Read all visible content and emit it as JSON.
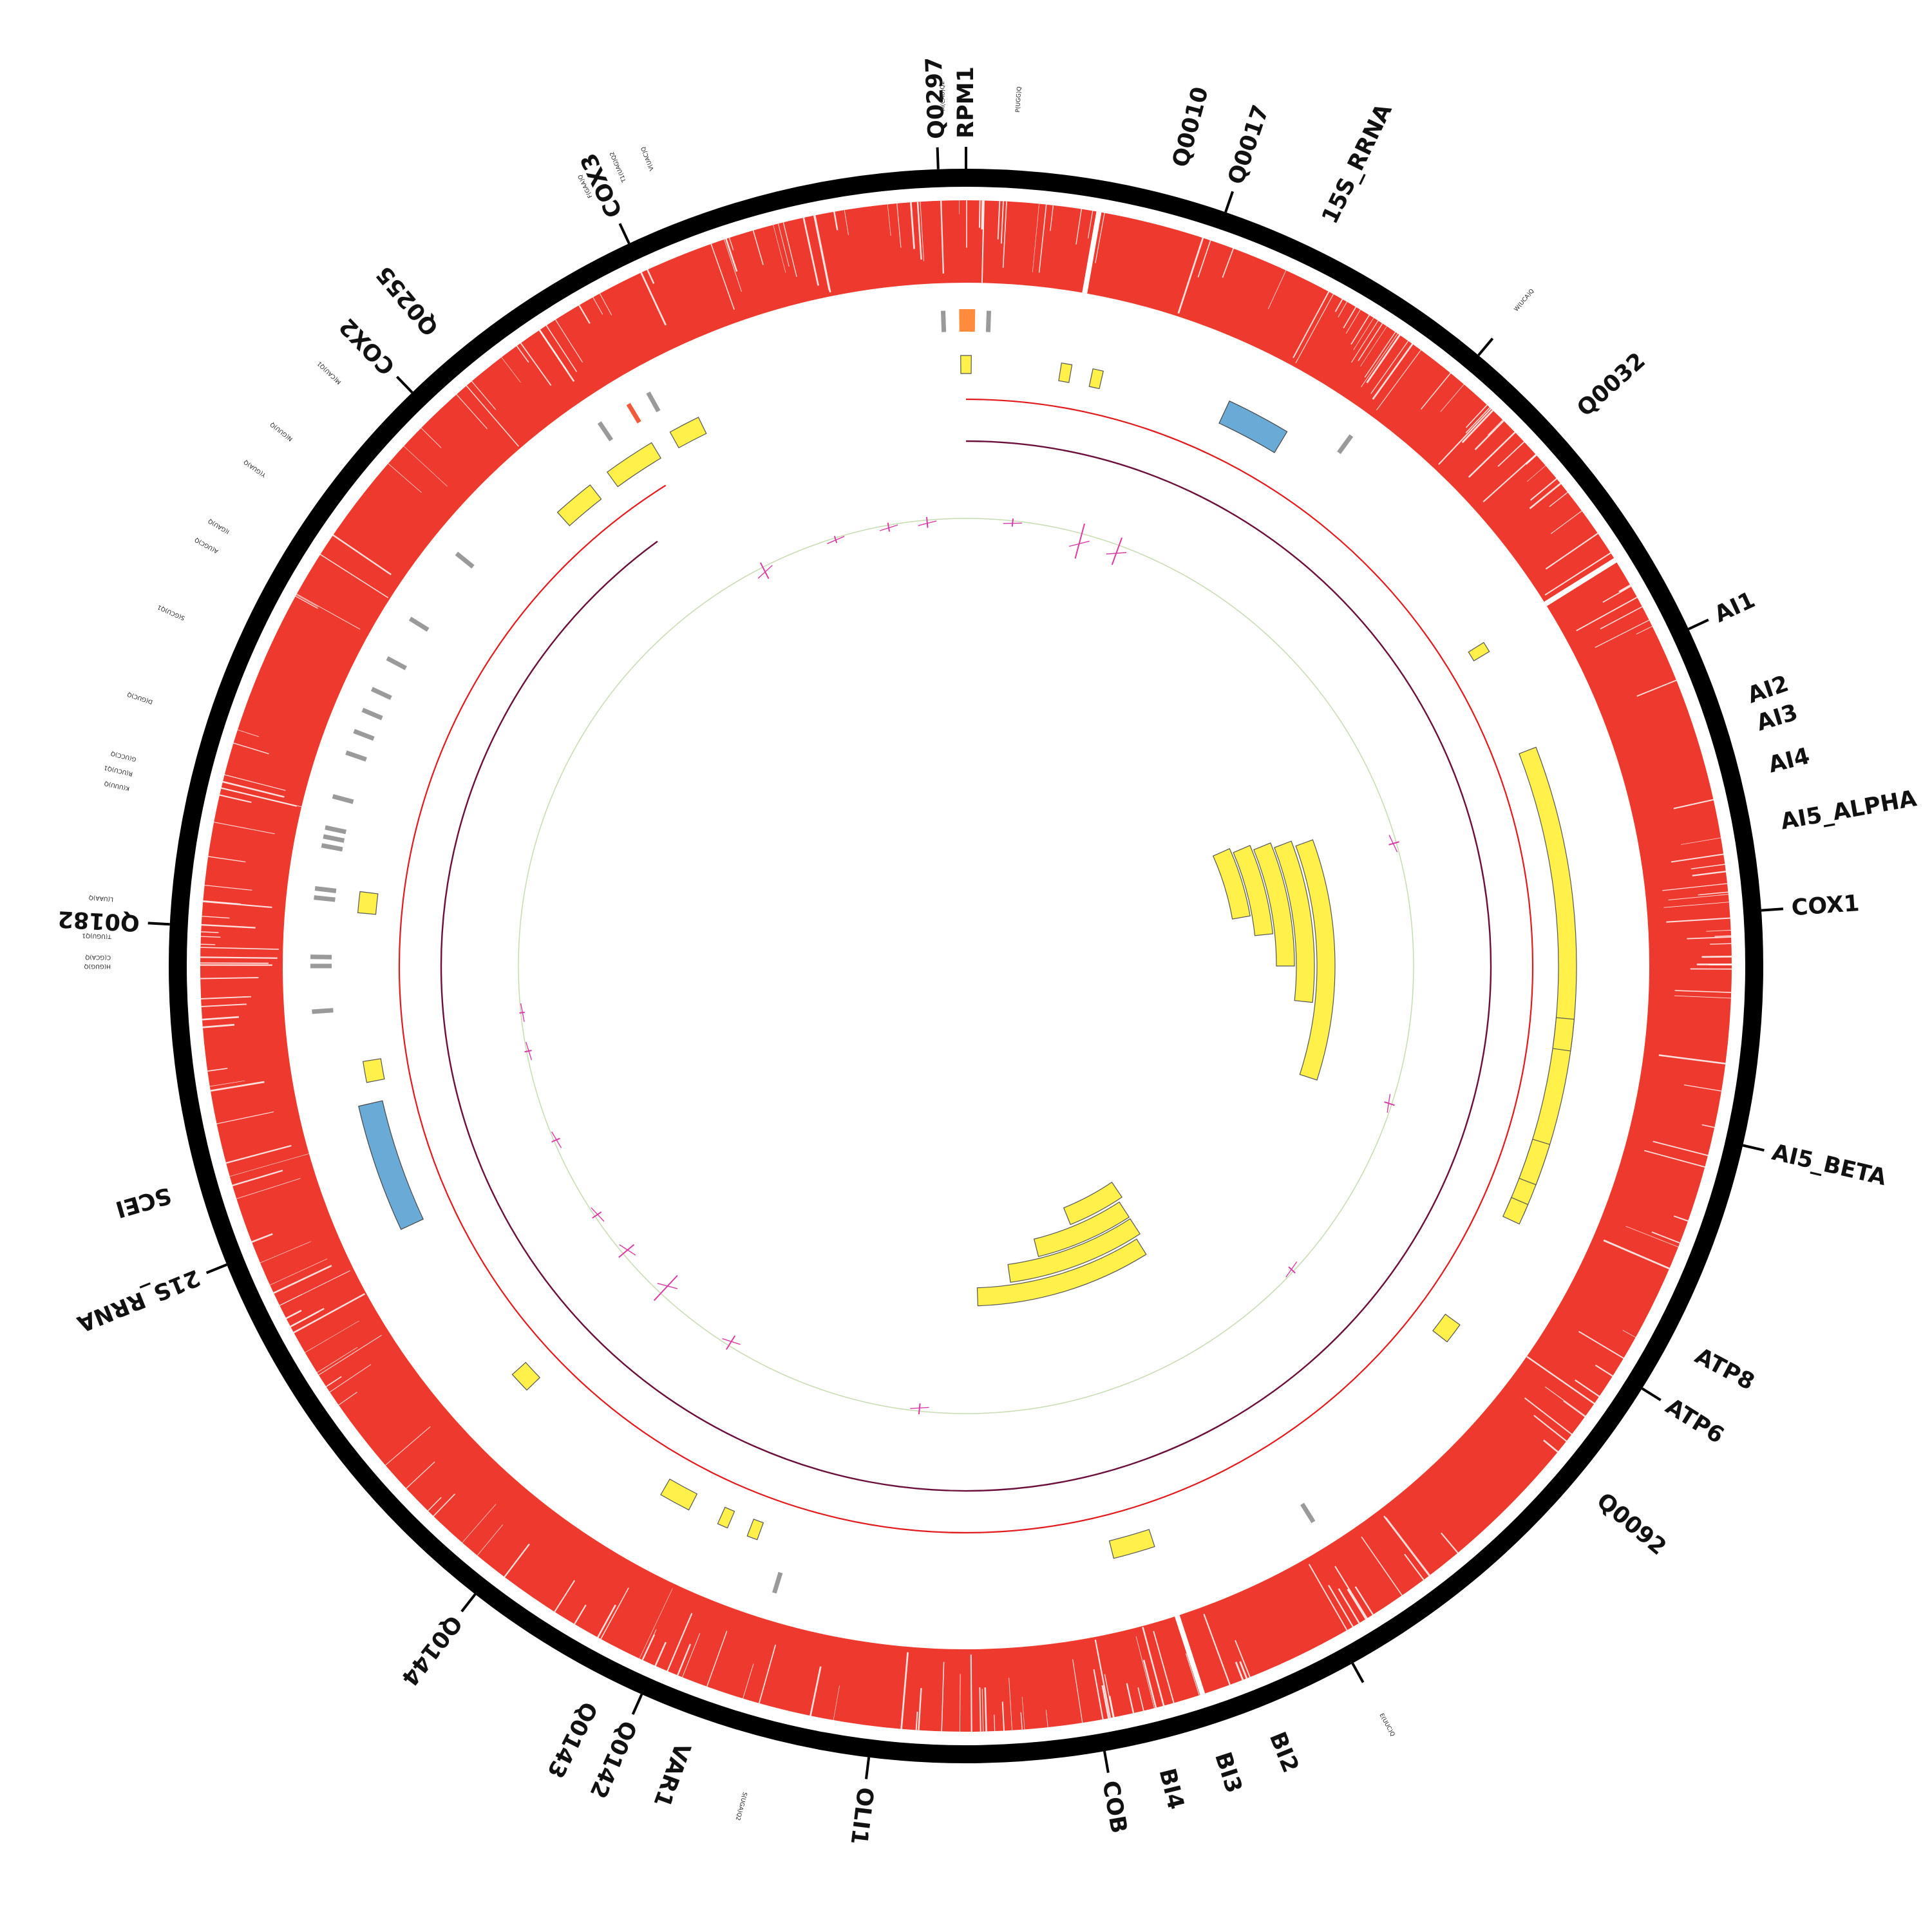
{
  "colors": {
    "outer_ring": "#000000",
    "coverage": "#ee3a2e",
    "gene_feature": "#fff04a",
    "rrna_feature": "#6aaad6",
    "trna_feature": "#9a9a9a",
    "highlight_trna": "#f25a3c",
    "origin_feature": "#ff8c3c",
    "forward_track": "#e4191c",
    "reverse_track": "#6b0f3a",
    "gc_baseline": "#c6dbb0",
    "gc_skew": "#d93ba4"
  },
  "gene_labels": [
    {
      "name": "Q0297",
      "angle": -2
    },
    {
      "name": "RPM1",
      "angle": 0
    },
    {
      "name": "Q0010",
      "angle": 15
    },
    {
      "name": "Q0017",
      "angle": 19
    },
    {
      "name": "15S_RRNA",
      "angle": 26
    },
    {
      "name": "Q0032",
      "angle": 48
    },
    {
      "name": "AI1",
      "angle": 65
    },
    {
      "name": "AI2",
      "angle": 71
    },
    {
      "name": "AI3",
      "angle": 73
    },
    {
      "name": "AI4",
      "angle": 76
    },
    {
      "name": "AI5_ALPHA",
      "angle": 80
    },
    {
      "name": "COX1",
      "angle": 86
    },
    {
      "name": "AI5_BETA",
      "angle": 103
    },
    {
      "name": "ATP8",
      "angle": 118
    },
    {
      "name": "ATP6",
      "angle": 122
    },
    {
      "name": "Q0092",
      "angle": 130
    },
    {
      "name": "BI2",
      "angle": 158
    },
    {
      "name": "BI3",
      "angle": 162
    },
    {
      "name": "BI4",
      "angle": 166
    },
    {
      "name": "COB",
      "angle": 170
    },
    {
      "name": "OLI1",
      "angle": 187
    },
    {
      "name": "VAR1",
      "angle": 200
    },
    {
      "name": "Q0142",
      "angle": 204
    },
    {
      "name": "Q0143",
      "angle": 207
    },
    {
      "name": "Q0144",
      "angle": 218
    },
    {
      "name": "21S_RRNA",
      "angle": 248
    },
    {
      "name": "SCEI",
      "angle": 254
    },
    {
      "name": "Q0182",
      "angle": 273
    },
    {
      "name": "COX2",
      "angle": 316
    },
    {
      "name": "Q0255",
      "angle": 320
    },
    {
      "name": "COX3",
      "angle": 335
    }
  ],
  "trna_labels": [
    {
      "name": "M(CAU)Q2",
      "angle": -1.5
    },
    {
      "name": "P(UGG)Q",
      "angle": 3.5
    },
    {
      "name": "W(UCA)Q",
      "angle": 40
    },
    {
      "name": "E(UUC)Q",
      "angle": 151
    },
    {
      "name": "S(UGA)Q2",
      "angle": 195
    },
    {
      "name": "T(UGU)Q1",
      "angle": 272
    },
    {
      "name": "C(GCA)Q",
      "angle": 270.6
    },
    {
      "name": "H(GUG)Q",
      "angle": 270
    },
    {
      "name": "L(UAA)Q",
      "angle": 274.5
    },
    {
      "name": "K(UUU)Q",
      "angle": 282
    },
    {
      "name": "R(UCU)Q1",
      "angle": 283
    },
    {
      "name": "G(UCC)Q",
      "angle": 284
    },
    {
      "name": "D(GUC)Q",
      "angle": 288
    },
    {
      "name": "S(GCU)Q1",
      "angle": 294
    },
    {
      "name": "A(UGC)Q",
      "angle": 299
    },
    {
      "name": "I(GAU)Q",
      "angle": 300.5
    },
    {
      "name": "Y(GUA)Q",
      "angle": 305
    },
    {
      "name": "N(GUU)Q",
      "angle": 308
    },
    {
      "name": "M(CAU)Q1",
      "angle": 313
    },
    {
      "name": "F(GAA)Q",
      "angle": 334
    },
    {
      "name": "T1(UAG)Q2",
      "angle": 336.5
    },
    {
      "name": "V(UAC)Q",
      "angle": 338.5
    }
  ],
  "tick_marks": [
    -2,
    0,
    19,
    40,
    65,
    86,
    103,
    122,
    151,
    170,
    187,
    204,
    218,
    248,
    273,
    316,
    335
  ],
  "genes_outer": [
    {
      "start": -0.5,
      "end": 0.5
    },
    {
      "start": 9,
      "end": 10
    },
    {
      "start": 12,
      "end": 13
    },
    {
      "start": 58,
      "end": 59
    },
    {
      "start": 69,
      "end": 114
    },
    {
      "start": 107,
      "end": 111
    },
    {
      "start": 113,
      "end": 115
    },
    {
      "start": 95,
      "end": 98
    },
    {
      "start": 126,
      "end": 128
    },
    {
      "start": 162,
      "end": 166
    },
    {
      "start": 200,
      "end": 201
    },
    {
      "start": 203,
      "end": 204
    },
    {
      "start": 207,
      "end": 210
    },
    {
      "start": 226,
      "end": 228
    },
    {
      "start": 259,
      "end": 261
    },
    {
      "start": 275,
      "end": 277
    },
    {
      "start": 318,
      "end": 322
    },
    {
      "start": 324,
      "end": 329
    },
    {
      "start": 331,
      "end": 334
    }
  ],
  "genes_nested": [
    {
      "start": 70,
      "end": 108,
      "r": 545
    },
    {
      "start": 69,
      "end": 96,
      "r": 513
    },
    {
      "start": 68,
      "end": 90,
      "r": 482
    },
    {
      "start": 67,
      "end": 84,
      "r": 451
    },
    {
      "start": 66,
      "end": 80,
      "r": 420
    },
    {
      "start": 148,
      "end": 178,
      "r": 500
    },
    {
      "start": 147,
      "end": 172,
      "r": 468
    },
    {
      "start": 147,
      "end": 166,
      "r": 437
    },
    {
      "start": 146,
      "end": 158,
      "r": 405
    }
  ],
  "rrna": [
    {
      "start": 25,
      "end": 31
    },
    {
      "start": 245,
      "end": 257
    }
  ],
  "trna_ticks": [
    {
      "angle": -2.0,
      "hl": false
    },
    {
      "angle": 2.0,
      "hl": false
    },
    {
      "angle": 36.0,
      "hl": false
    },
    {
      "angle": 148.0,
      "hl": false
    },
    {
      "angle": 197.0,
      "hl": false
    },
    {
      "angle": 266.0,
      "hl": false
    },
    {
      "angle": 270.0,
      "hl": false
    },
    {
      "angle": 270.8,
      "hl": false
    },
    {
      "angle": 276.0,
      "hl": false
    },
    {
      "angle": 276.8,
      "hl": false
    },
    {
      "angle": 280.6,
      "hl": false
    },
    {
      "angle": 281.4,
      "hl": false
    },
    {
      "angle": 282.2,
      "hl": false
    },
    {
      "angle": 285.0,
      "hl": false
    },
    {
      "angle": 289.0,
      "hl": false
    },
    {
      "angle": 291.0,
      "hl": false
    },
    {
      "angle": 293.0,
      "hl": false
    },
    {
      "angle": 295.0,
      "hl": false
    },
    {
      "angle": 298.0,
      "hl": false
    },
    {
      "angle": 302.0,
      "hl": false
    },
    {
      "angle": 309.0,
      "hl": false
    },
    {
      "angle": 326.0,
      "hl": false
    },
    {
      "angle": 329.0,
      "hl": true
    },
    {
      "angle": 331.0,
      "hl": false
    }
  ],
  "origin_feature": {
    "start": -0.6,
    "end": 0.8
  },
  "forward_arc": {
    "start": 0,
    "end": 328
  },
  "reverse_arc": {
    "start": 0,
    "end": 324
  },
  "gc_skew_spikes": [
    {
      "angle": 333,
      "height": 20
    },
    {
      "angle": 343,
      "height": 8
    },
    {
      "angle": 350,
      "height": 10
    },
    {
      "angle": 355,
      "height": 12
    },
    {
      "angle": 6,
      "height": 9
    },
    {
      "angle": 15,
      "height": 40
    },
    {
      "angle": 20,
      "height": 32
    },
    {
      "angle": 74,
      "height": 12
    },
    {
      "angle": 108,
      "height": 12
    },
    {
      "angle": 133,
      "height": 10
    },
    {
      "angle": 186,
      "height": 12
    },
    {
      "angle": 212,
      "height": 18
    },
    {
      "angle": 223,
      "height": 38
    },
    {
      "angle": 230,
      "height": 22
    },
    {
      "angle": 236,
      "height": 12
    },
    {
      "angle": 247,
      "height": 10
    },
    {
      "angle": 259,
      "height": 8
    },
    {
      "angle": 264,
      "height": 6
    }
  ]
}
